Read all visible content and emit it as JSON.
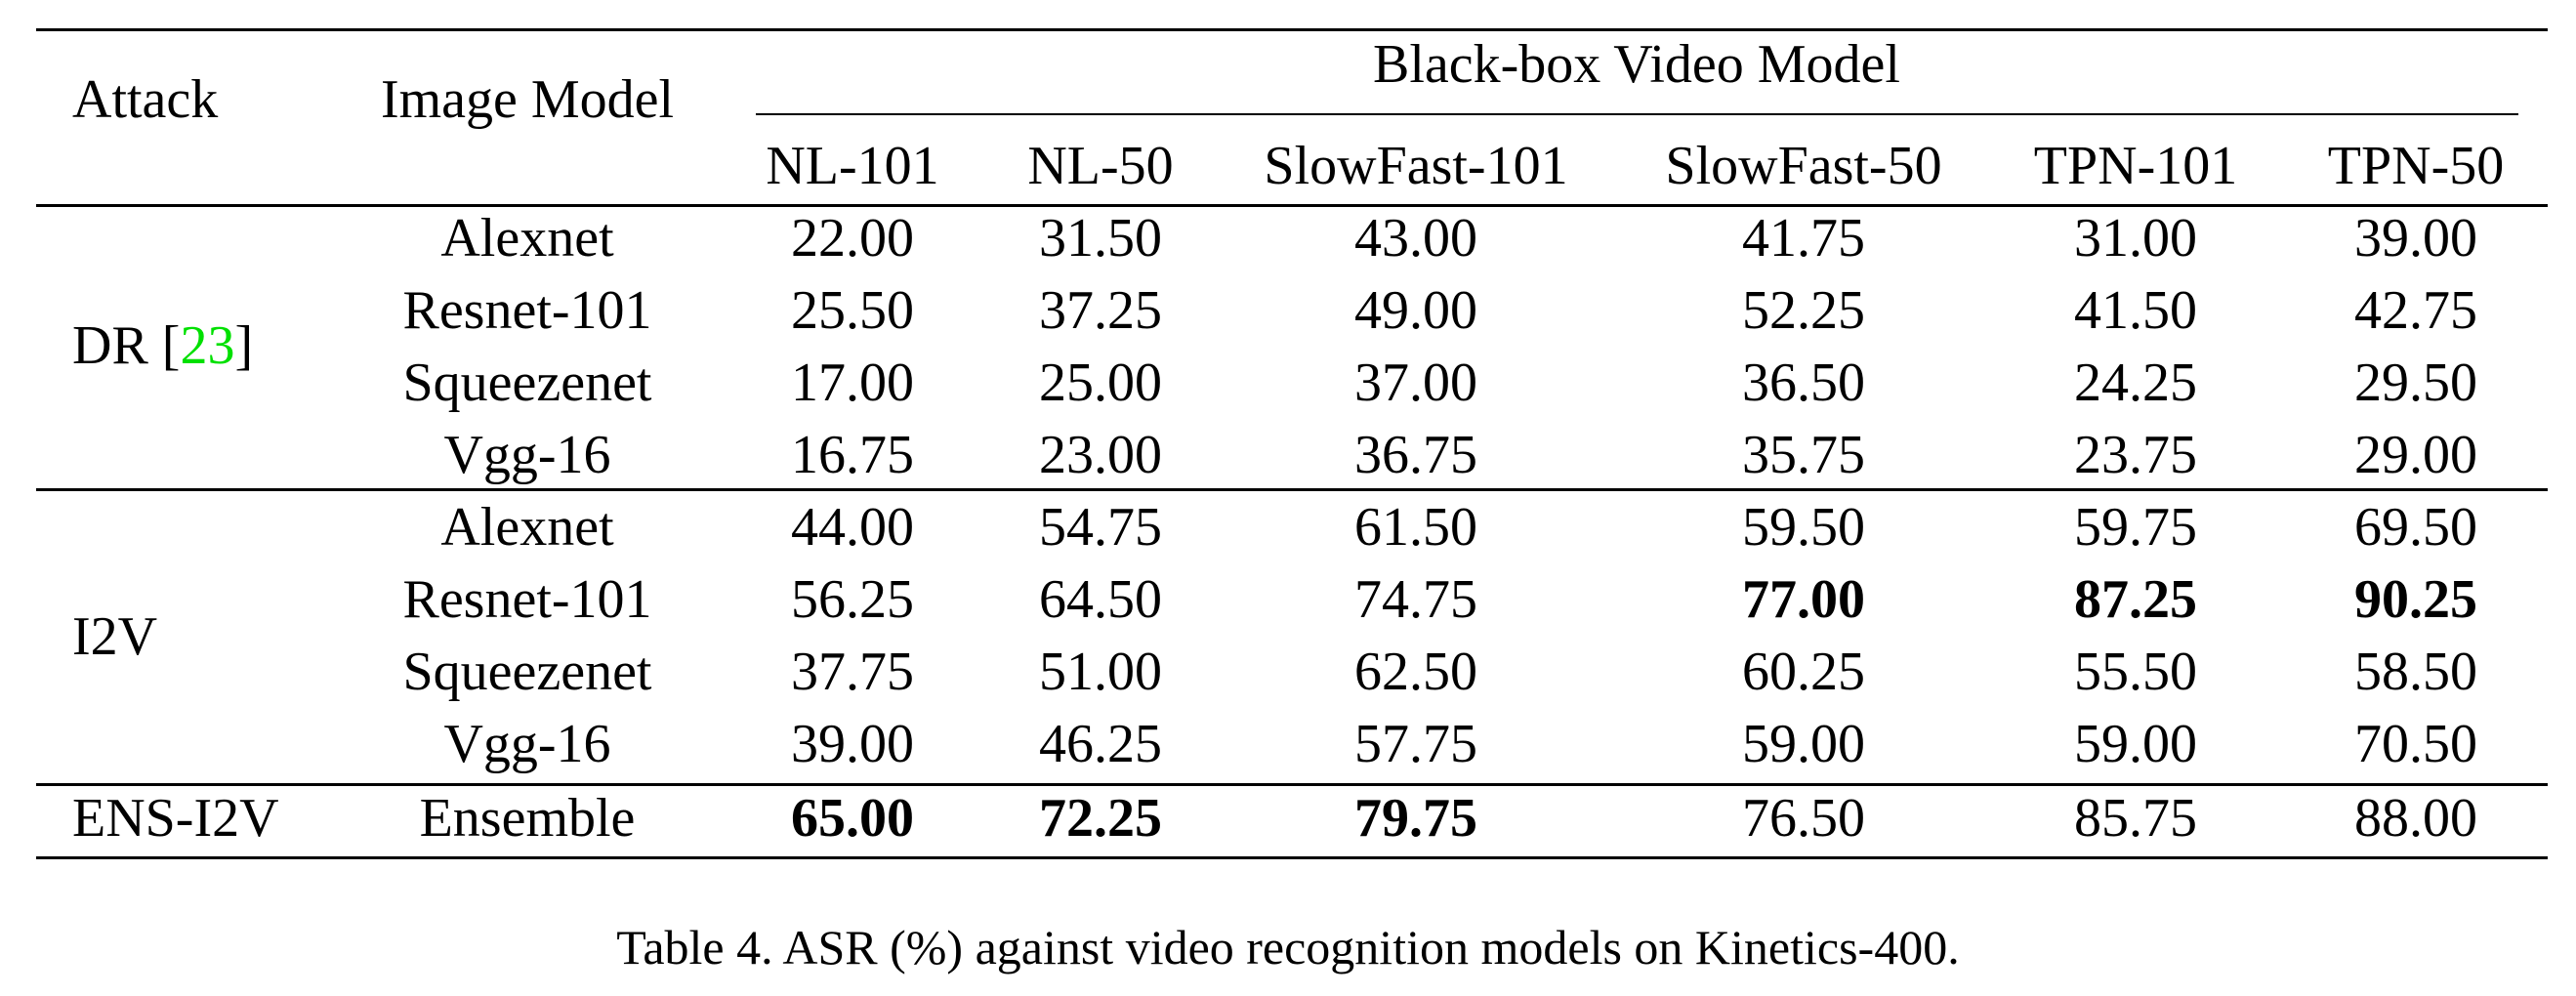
{
  "table": {
    "header": {
      "attack": "Attack",
      "image_model": "Image Model",
      "group": "Black-box Video Model",
      "columns": [
        "NL-101",
        "NL-50",
        "SlowFast-101",
        "SlowFast-50",
        "TPN-101",
        "TPN-50"
      ]
    },
    "groups": [
      {
        "attack": "DR [",
        "citation": "23",
        "attack_suffix": "]",
        "rows": [
          {
            "model": "Alexnet",
            "values": [
              "22.00",
              "31.50",
              "43.00",
              "41.75",
              "31.00",
              "39.00"
            ],
            "bold": [
              false,
              false,
              false,
              false,
              false,
              false
            ]
          },
          {
            "model": "Resnet-101",
            "values": [
              "25.50",
              "37.25",
              "49.00",
              "52.25",
              "41.50",
              "42.75"
            ],
            "bold": [
              false,
              false,
              false,
              false,
              false,
              false
            ]
          },
          {
            "model": "Squeezenet",
            "values": [
              "17.00",
              "25.00",
              "37.00",
              "36.50",
              "24.25",
              "29.50"
            ],
            "bold": [
              false,
              false,
              false,
              false,
              false,
              false
            ]
          },
          {
            "model": "Vgg-16",
            "values": [
              "16.75",
              "23.00",
              "36.75",
              "35.75",
              "23.75",
              "29.00"
            ],
            "bold": [
              false,
              false,
              false,
              false,
              false,
              false
            ]
          }
        ]
      },
      {
        "attack": "I2V",
        "rows": [
          {
            "model": "Alexnet",
            "values": [
              "44.00",
              "54.75",
              "61.50",
              "59.50",
              "59.75",
              "69.50"
            ],
            "bold": [
              false,
              false,
              false,
              false,
              false,
              false
            ]
          },
          {
            "model": "Resnet-101",
            "values": [
              "56.25",
              "64.50",
              "74.75",
              "77.00",
              "87.25",
              "90.25"
            ],
            "bold": [
              false,
              false,
              false,
              true,
              true,
              true
            ]
          },
          {
            "model": "Squeezenet",
            "values": [
              "37.75",
              "51.00",
              "62.50",
              "60.25",
              "55.50",
              "58.50"
            ],
            "bold": [
              false,
              false,
              false,
              false,
              false,
              false
            ]
          },
          {
            "model": "Vgg-16",
            "values": [
              "39.00",
              "46.25",
              "57.75",
              "59.00",
              "59.00",
              "70.50"
            ],
            "bold": [
              false,
              false,
              false,
              false,
              false,
              false
            ]
          }
        ]
      },
      {
        "attack": "ENS-I2V",
        "rows": [
          {
            "model": "Ensemble",
            "values": [
              "65.00",
              "72.25",
              "79.75",
              "76.50",
              "85.75",
              "88.00"
            ],
            "bold": [
              true,
              true,
              true,
              false,
              false,
              false
            ]
          }
        ]
      }
    ]
  },
  "caption": "Table 4. ASR (%) against video recognition models on Kinetics-400.",
  "colors": {
    "citation": "#00e000",
    "text": "#000000",
    "background": "#ffffff"
  }
}
